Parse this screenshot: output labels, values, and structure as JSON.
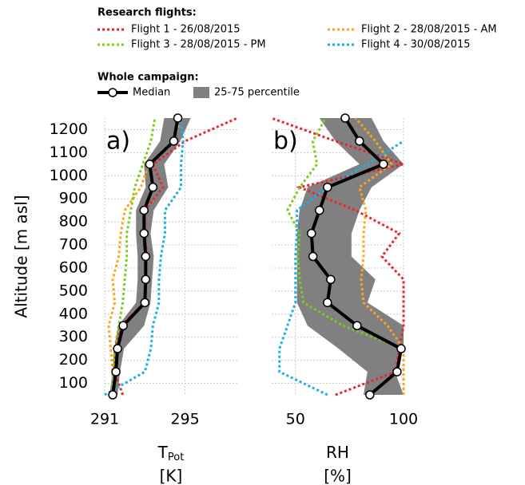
{
  "legend": {
    "flights_title": "Research flights:",
    "campaign_title": "Whole campaign:"
  },
  "chart_data": [
    {
      "type": "line",
      "panel_label": "a)",
      "xlabel": "T",
      "xlabel_sub": "Pot",
      "xlabel_unit": "[K]",
      "ylabel": "Altitude [m asl]",
      "xlim": [
        291,
        297.6
      ],
      "xticks": [
        291,
        295
      ],
      "ylim": [
        50,
        1250
      ],
      "yticks": [
        100,
        200,
        300,
        400,
        500,
        600,
        700,
        800,
        900,
        1000,
        1100,
        1200
      ],
      "grid": true,
      "y": [
        50,
        150,
        250,
        350,
        450,
        550,
        650,
        750,
        850,
        950,
        1050,
        1150,
        1250
      ],
      "band": {
        "name": "25-75 percentile",
        "color": "#808080",
        "low": [
          291.24,
          291.4,
          291.48,
          291.68,
          292.56,
          292.64,
          292.64,
          292.56,
          292.56,
          293.04,
          292.96,
          293.76,
          293.96
        ],
        "high": [
          291.64,
          291.76,
          291.96,
          292.96,
          293.28,
          293.36,
          293.44,
          293.28,
          293.44,
          294.16,
          293.96,
          294.76,
          295.28
        ]
      },
      "median": {
        "name": "Median",
        "color": "#000000",
        "values": [
          291.4,
          291.56,
          291.64,
          291.92,
          293.0,
          293.04,
          293.04,
          292.96,
          292.96,
          293.4,
          293.24,
          294.44,
          294.64
        ]
      },
      "series": [
        {
          "name": "Flight 1 - 26/08/2015",
          "color": "#e8262a",
          "values": [
            291.9,
            291.5,
            291.5,
            291.8,
            293.0,
            293.0,
            293.1,
            293.0,
            293.0,
            293.9,
            293.4,
            295.0,
            297.6
          ]
        },
        {
          "name": "Flight 2 - 28/08/2015 - AM",
          "color": "#ffa31a",
          "values": [
            291.4,
            291.4,
            291.3,
            291.2,
            291.5,
            291.4,
            291.7,
            291.8,
            292.0,
            292.8,
            293.2,
            294.4,
            294.8
          ]
        },
        {
          "name": "Flight 3 - 28/08/2015 - PM",
          "color": "#7ccc1c",
          "values": [
            291.4,
            291.4,
            291.5,
            291.7,
            291.9,
            292.0,
            292.1,
            292.1,
            292.3,
            292.5,
            292.9,
            293.3,
            293.5
          ]
        },
        {
          "name": "Flight 4 - 30/08/2015",
          "color": "#1ab0e8",
          "values": [
            291.0,
            293.0,
            293.3,
            293.4,
            293.7,
            293.7,
            293.8,
            294.0,
            294.0,
            294.8,
            294.8,
            294.9,
            294.8
          ]
        }
      ]
    },
    {
      "type": "line",
      "panel_label": "b)",
      "xlabel": "RH",
      "xlabel_unit": "[%]",
      "xlim": [
        39,
        100
      ],
      "xticks": [
        50,
        100
      ],
      "ylim": [
        50,
        1250
      ],
      "yticks": [
        100,
        200,
        300,
        400,
        500,
        600,
        700,
        800,
        900,
        1000,
        1100,
        1200
      ],
      "grid": true,
      "y": [
        50,
        150,
        250,
        350,
        450,
        550,
        650,
        750,
        850,
        950,
        1050,
        1150,
        1250
      ],
      "band": {
        "color": "#808080",
        "low": [
          81.5,
          83.3,
          70,
          55.6,
          50.7,
          50.7,
          50.7,
          50.7,
          51.9,
          55.6,
          79.6,
          68.5,
          61.1
        ],
        "high": [
          100,
          96,
          100,
          100,
          83.3,
          87,
          75.9,
          75.9,
          79.6,
          85.2,
          100,
          90.7,
          85.2
        ]
      },
      "median": {
        "color": "#000000",
        "values": [
          84.4,
          97,
          98.9,
          78.5,
          64.8,
          66.3,
          58.1,
          57.4,
          61.1,
          64.8,
          90.7,
          79.6,
          73.0
        ]
      },
      "series": [
        {
          "color": "#e8262a",
          "values": [
            68.5,
            96.3,
            98,
            100,
            100,
            100,
            90,
            98,
            77.8,
            51.9,
            100,
            68.5,
            38.9
          ]
        },
        {
          "color": "#ffa31a",
          "values": [
            100,
            100,
            100,
            92.6,
            81.5,
            80.4,
            81.5,
            81.5,
            82.6,
            79.6,
            94.4,
            87,
            77.8
          ]
        },
        {
          "color": "#7ccc1c",
          "values": [
            null,
            null,
            100,
            72,
            53.7,
            52,
            51,
            52,
            46.3,
            52,
            60,
            58,
            64
          ]
        },
        {
          "color": "#1ab0e8",
          "values": [
            64.8,
            42.6,
            42.6,
            46.3,
            50,
            50,
            50,
            50.7,
            50.7,
            64.8,
            83.3,
            100,
            null
          ]
        }
      ]
    }
  ]
}
